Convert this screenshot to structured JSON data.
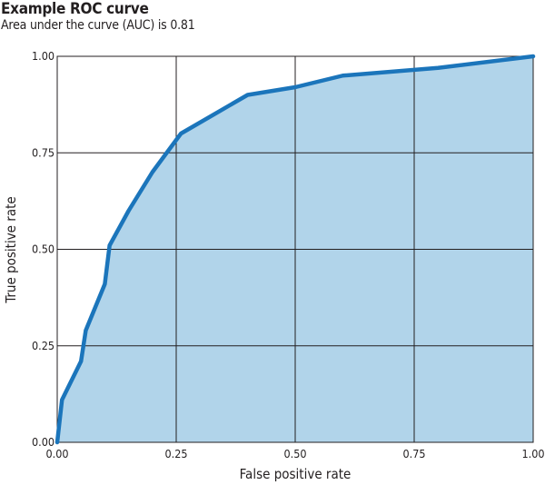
{
  "chart_data": {
    "type": "area",
    "title": "Example ROC curve",
    "subtitle": "Area under the curve (AUC) is 0.81",
    "xlabel": "False positive rate",
    "ylabel": "True positive rate",
    "xlim": [
      0,
      1
    ],
    "ylim": [
      0,
      1
    ],
    "xticks": [
      "0.00",
      "0.25",
      "0.50",
      "0.75",
      "1.00"
    ],
    "yticks": [
      "0.00",
      "0.25",
      "0.50",
      "0.75",
      "1.00"
    ],
    "grid": true,
    "x": [
      0.0,
      0.01,
      0.05,
      0.06,
      0.1,
      0.11,
      0.15,
      0.2,
      0.26,
      0.4,
      0.5,
      0.6,
      0.8,
      1.0
    ],
    "y": [
      0.0,
      0.11,
      0.21,
      0.29,
      0.41,
      0.51,
      0.6,
      0.7,
      0.8,
      0.9,
      0.92,
      0.95,
      0.97,
      1.0
    ],
    "colors": {
      "line": "#1b75bb",
      "fill": "#b1d4ea",
      "grid": "#231f20"
    }
  }
}
